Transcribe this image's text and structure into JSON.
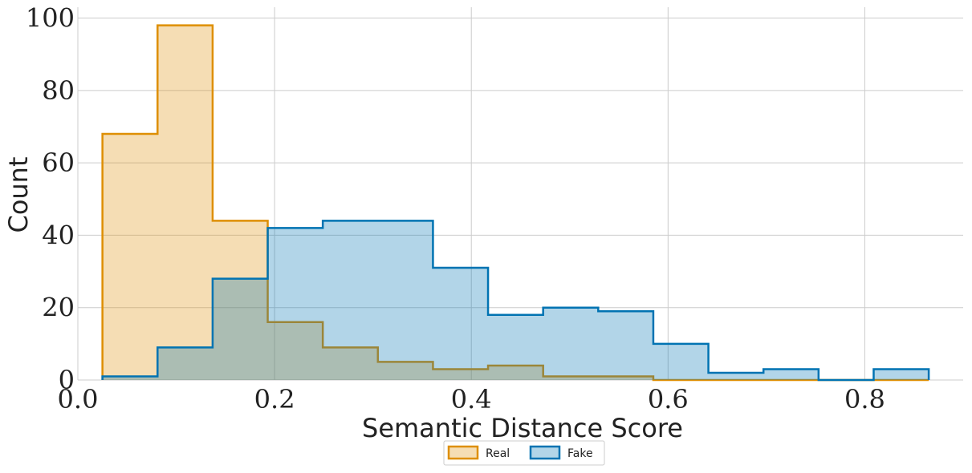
{
  "chart_data": {
    "type": "histogram",
    "xlabel": "Semantic Distance Score",
    "ylabel": "Count",
    "xlim": [
      0.0,
      0.9
    ],
    "ylim": [
      0,
      103
    ],
    "xticks": [
      0.0,
      0.2,
      0.4,
      0.6,
      0.8
    ],
    "xtick_labels": [
      "0.0",
      "0.2",
      "0.4",
      "0.6",
      "0.8"
    ],
    "yticks": [
      0,
      20,
      40,
      60,
      80,
      100
    ],
    "ytick_labels": [
      "0",
      "20",
      "40",
      "60",
      "80",
      "100"
    ],
    "grid": true,
    "legend_position": "bottom-center",
    "bin_edges": [
      0.025,
      0.081,
      0.137,
      0.193,
      0.249,
      0.305,
      0.361,
      0.417,
      0.473,
      0.529,
      0.585,
      0.641,
      0.697,
      0.753,
      0.809,
      0.865
    ],
    "series": [
      {
        "name": "Real",
        "color": "#de8f05",
        "fill": "#f4dcb2",
        "counts": [
          68,
          98,
          44,
          16,
          9,
          5,
          3,
          4,
          1,
          1,
          0,
          0,
          0,
          0,
          0
        ]
      },
      {
        "name": "Fake",
        "color": "#0173b2",
        "fill": "#b2d4e8",
        "counts": [
          1,
          9,
          28,
          42,
          44,
          44,
          31,
          18,
          20,
          19,
          10,
          2,
          3,
          0,
          3
        ]
      }
    ]
  }
}
